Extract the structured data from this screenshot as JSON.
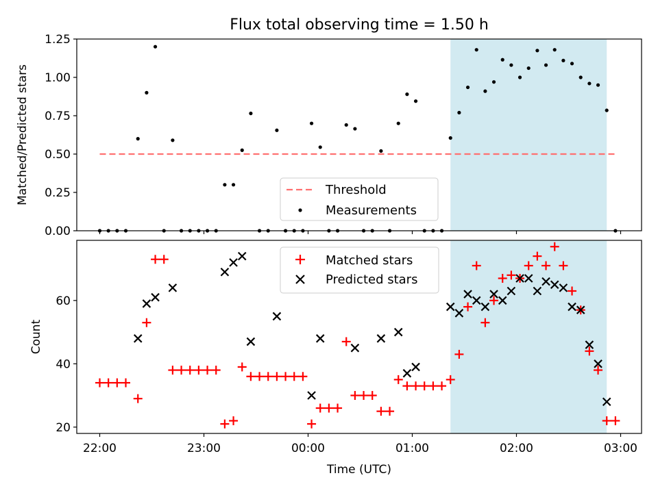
{
  "figure": {
    "title": "Flux total observing time = 1.50 h"
  },
  "chart_data": [
    {
      "type": "scatter",
      "panel": "top",
      "xlabel": "",
      "ylabel": "Matched/Predicted stars",
      "ylim": [
        0,
        1.25
      ],
      "yticks": [
        "0.00",
        "0.25",
        "0.50",
        "0.75",
        "1.00",
        "1.25"
      ],
      "shaded_region": {
        "x_start": "01:22",
        "x_end": "02:52",
        "color": "#add8e6"
      },
      "threshold": {
        "name": "Threshold",
        "value": 0.5,
        "x_start": "22:00",
        "x_end": "02:58",
        "color": "#ff7070"
      },
      "legend": {
        "placement": "lower-center",
        "entries": [
          "Threshold",
          "Measurements"
        ]
      },
      "series": [
        {
          "name": "Measurements",
          "marker": "dot",
          "color": "#000000",
          "points": [
            [
              "22:00",
              0
            ],
            [
              "22:05",
              0
            ],
            [
              "22:10",
              0
            ],
            [
              "22:15",
              0
            ],
            [
              "22:22",
              0.6
            ],
            [
              "22:27",
              0.9
            ],
            [
              "22:32",
              1.2
            ],
            [
              "22:37",
              0
            ],
            [
              "22:42",
              0.59
            ],
            [
              "22:47",
              0
            ],
            [
              "22:52",
              0
            ],
            [
              "22:57",
              0
            ],
            [
              "23:02",
              0
            ],
            [
              "23:07",
              0
            ],
            [
              "23:12",
              0.3
            ],
            [
              "23:17",
              0.3
            ],
            [
              "23:22",
              0.525
            ],
            [
              "23:27",
              0.765
            ],
            [
              "23:32",
              0
            ],
            [
              "23:37",
              0
            ],
            [
              "23:42",
              0.655
            ],
            [
              "23:47",
              0
            ],
            [
              "23:52",
              0
            ],
            [
              "23:57",
              0
            ],
            [
              "00:02",
              0.7
            ],
            [
              "00:07",
              0.545
            ],
            [
              "00:12",
              0
            ],
            [
              "00:17",
              0
            ],
            [
              "00:22",
              0.69
            ],
            [
              "00:27",
              0.665
            ],
            [
              "00:32",
              0
            ],
            [
              "00:37",
              0
            ],
            [
              "00:42",
              0.52
            ],
            [
              "00:47",
              0
            ],
            [
              "00:52",
              0.7
            ],
            [
              "00:57",
              0.89
            ],
            [
              "01:02",
              0.845
            ],
            [
              "01:07",
              0
            ],
            [
              "01:12",
              0
            ],
            [
              "01:17",
              0
            ],
            [
              "01:22",
              0.605
            ],
            [
              "01:27",
              0.77
            ],
            [
              "01:32",
              0.935
            ],
            [
              "01:37",
              1.18
            ],
            [
              "01:42",
              0.91
            ],
            [
              "01:47",
              0.97
            ],
            [
              "01:52",
              1.115
            ],
            [
              "01:57",
              1.08
            ],
            [
              "02:02",
              1.0
            ],
            [
              "02:07",
              1.06
            ],
            [
              "02:12",
              1.175
            ],
            [
              "02:17",
              1.08
            ],
            [
              "02:22",
              1.18
            ],
            [
              "02:27",
              1.11
            ],
            [
              "02:32",
              1.09
            ],
            [
              "02:37",
              1.0
            ],
            [
              "02:42",
              0.96
            ],
            [
              "02:47",
              0.95
            ],
            [
              "02:52",
              0.785
            ],
            [
              "02:57",
              0
            ]
          ]
        }
      ]
    },
    {
      "type": "scatter",
      "panel": "bottom",
      "xlabel": "Time (UTC)",
      "ylabel": "Count",
      "ylim": [
        18,
        79
      ],
      "yticks": [
        "20",
        "40",
        "60"
      ],
      "xticks": [
        "22:00",
        "23:00",
        "00:00",
        "01:00",
        "02:00",
        "03:00"
      ],
      "shaded_region": {
        "x_start": "01:22",
        "x_end": "02:52",
        "color": "#add8e6"
      },
      "legend": {
        "placement": "top-center",
        "entries": [
          "Matched stars",
          "Predicted stars"
        ]
      },
      "series": [
        {
          "name": "Matched stars",
          "marker": "plus",
          "color": "#ff0000",
          "points": [
            [
              "22:00",
              34
            ],
            [
              "22:05",
              34
            ],
            [
              "22:10",
              34
            ],
            [
              "22:15",
              34
            ],
            [
              "22:22",
              29
            ],
            [
              "22:27",
              53
            ],
            [
              "22:32",
              73
            ],
            [
              "22:37",
              73
            ],
            [
              "22:42",
              38
            ],
            [
              "22:47",
              38
            ],
            [
              "22:52",
              38
            ],
            [
              "22:57",
              38
            ],
            [
              "23:02",
              38
            ],
            [
              "23:07",
              38
            ],
            [
              "23:12",
              21
            ],
            [
              "23:17",
              22
            ],
            [
              "23:22",
              39
            ],
            [
              "23:27",
              36
            ],
            [
              "23:32",
              36
            ],
            [
              "23:37",
              36
            ],
            [
              "23:42",
              36
            ],
            [
              "23:47",
              36
            ],
            [
              "23:52",
              36
            ],
            [
              "23:57",
              36
            ],
            [
              "00:02",
              21
            ],
            [
              "00:07",
              26
            ],
            [
              "00:12",
              26
            ],
            [
              "00:17",
              26
            ],
            [
              "00:22",
              47
            ],
            [
              "00:27",
              30
            ],
            [
              "00:32",
              30
            ],
            [
              "00:37",
              30
            ],
            [
              "00:42",
              25
            ],
            [
              "00:47",
              25
            ],
            [
              "00:52",
              35
            ],
            [
              "00:57",
              33
            ],
            [
              "01:02",
              33
            ],
            [
              "01:07",
              33
            ],
            [
              "01:12",
              33
            ],
            [
              "01:17",
              33
            ],
            [
              "01:22",
              35
            ],
            [
              "01:27",
              43
            ],
            [
              "01:32",
              58
            ],
            [
              "01:37",
              71
            ],
            [
              "01:42",
              53
            ],
            [
              "01:47",
              60
            ],
            [
              "01:52",
              67
            ],
            [
              "01:57",
              68
            ],
            [
              "02:02",
              67
            ],
            [
              "02:07",
              71
            ],
            [
              "02:12",
              74
            ],
            [
              "02:17",
              71
            ],
            [
              "02:22",
              77
            ],
            [
              "02:27",
              71
            ],
            [
              "02:32",
              63
            ],
            [
              "02:37",
              57
            ],
            [
              "02:42",
              44
            ],
            [
              "02:47",
              38
            ],
            [
              "02:52",
              22
            ],
            [
              "02:57",
              22
            ]
          ]
        },
        {
          "name": "Predicted stars",
          "marker": "x",
          "color": "#000000",
          "points": [
            [
              "22:22",
              48
            ],
            [
              "22:27",
              59
            ],
            [
              "22:32",
              61
            ],
            [
              "22:42",
              64
            ],
            [
              "23:12",
              69
            ],
            [
              "23:17",
              72
            ],
            [
              "23:22",
              74
            ],
            [
              "23:27",
              47
            ],
            [
              "23:42",
              55
            ],
            [
              "00:02",
              30
            ],
            [
              "00:07",
              48
            ],
            [
              "00:27",
              45
            ],
            [
              "00:42",
              48
            ],
            [
              "00:52",
              50
            ],
            [
              "00:57",
              37
            ],
            [
              "01:02",
              39
            ],
            [
              "01:22",
              58
            ],
            [
              "01:27",
              56
            ],
            [
              "01:32",
              62
            ],
            [
              "01:37",
              60
            ],
            [
              "01:42",
              58
            ],
            [
              "01:47",
              62
            ],
            [
              "01:52",
              60
            ],
            [
              "01:57",
              63
            ],
            [
              "02:02",
              67
            ],
            [
              "02:07",
              67
            ],
            [
              "02:12",
              63
            ],
            [
              "02:17",
              66
            ],
            [
              "02:22",
              65
            ],
            [
              "02:27",
              64
            ],
            [
              "02:32",
              58
            ],
            [
              "02:37",
              57
            ],
            [
              "02:42",
              46
            ],
            [
              "02:47",
              40
            ],
            [
              "02:52",
              28
            ]
          ]
        }
      ]
    }
  ]
}
